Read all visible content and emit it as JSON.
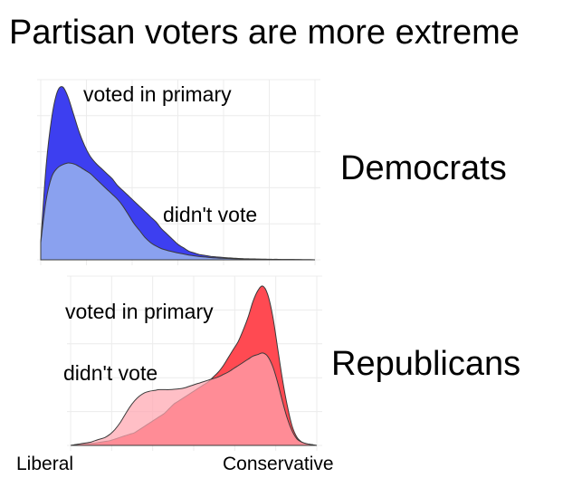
{
  "title": "Partisan voters are more extreme",
  "axis": {
    "left_label": "Liberal",
    "right_label": "Conservative"
  },
  "colors": {
    "dem_voted": "#3d3ff0",
    "dem_didnt": "#a8c8ee",
    "rep_voted": "#ff4a52",
    "rep_didnt": "#ffa6b0",
    "outline": "#3a3a3a",
    "grid": "#ececec"
  },
  "chart_data": [
    {
      "type": "area",
      "panel_label": "Democrats",
      "xlim": [
        0,
        1
      ],
      "grid": true,
      "series": [
        {
          "name": "voted in primary",
          "x": [
            0.0,
            0.02,
            0.04,
            0.06,
            0.08,
            0.1,
            0.12,
            0.14,
            0.16,
            0.18,
            0.2,
            0.22,
            0.24,
            0.26,
            0.28,
            0.3,
            0.32,
            0.34,
            0.36,
            0.38,
            0.4,
            0.42,
            0.44,
            0.46,
            0.48,
            0.5,
            0.52,
            0.54,
            0.56,
            0.58,
            0.6,
            0.62,
            0.64,
            0.66,
            0.68,
            0.7,
            0.72,
            0.74,
            0.76,
            0.78,
            0.8,
            0.82,
            0.84,
            0.86,
            0.88,
            0.9,
            0.92,
            0.94,
            0.96,
            0.98,
            1.0
          ],
          "y": [
            0.1,
            0.55,
            0.82,
            0.97,
            1.0,
            0.94,
            0.84,
            0.74,
            0.66,
            0.6,
            0.56,
            0.53,
            0.5,
            0.47,
            0.43,
            0.4,
            0.37,
            0.34,
            0.31,
            0.28,
            0.25,
            0.22,
            0.18,
            0.15,
            0.12,
            0.09,
            0.07,
            0.05,
            0.04,
            0.03,
            0.025,
            0.02,
            0.017,
            0.014,
            0.012,
            0.01,
            0.008,
            0.007,
            0.006,
            0.005,
            0.004,
            0.004,
            0.003,
            0.003,
            0.002,
            0.002,
            0.002,
            0.001,
            0.001,
            0.001,
            0.0
          ]
        },
        {
          "name": "didn't vote",
          "x": [
            0.0,
            0.02,
            0.04,
            0.06,
            0.08,
            0.1,
            0.12,
            0.14,
            0.16,
            0.18,
            0.2,
            0.22,
            0.24,
            0.26,
            0.28,
            0.3,
            0.32,
            0.34,
            0.36,
            0.38,
            0.4,
            0.42,
            0.44,
            0.46,
            0.48,
            0.5,
            0.52,
            0.54,
            0.56,
            0.58,
            0.6,
            0.62,
            0.64,
            0.66,
            0.68,
            0.7,
            0.72,
            0.74,
            0.76,
            0.78,
            0.8,
            0.82,
            0.84,
            0.86,
            0.88,
            0.9,
            0.92,
            0.94,
            0.96,
            0.98,
            1.0
          ],
          "y": [
            0.1,
            0.35,
            0.48,
            0.53,
            0.55,
            0.56,
            0.555,
            0.54,
            0.52,
            0.5,
            0.47,
            0.44,
            0.41,
            0.38,
            0.35,
            0.31,
            0.26,
            0.21,
            0.17,
            0.13,
            0.1,
            0.08,
            0.065,
            0.055,
            0.047,
            0.04,
            0.034,
            0.028,
            0.023,
            0.019,
            0.016,
            0.013,
            0.011,
            0.009,
            0.008,
            0.007,
            0.006,
            0.005,
            0.004,
            0.003,
            0.003,
            0.002,
            0.002,
            0.002,
            0.001,
            0.001,
            0.001,
            0.001,
            0.0,
            0.0,
            0.0
          ]
        }
      ]
    },
    {
      "type": "area",
      "panel_label": "Republicans",
      "xlim": [
        0,
        1
      ],
      "grid": true,
      "series": [
        {
          "name": "voted in primary",
          "x": [
            0.0,
            0.02,
            0.04,
            0.06,
            0.08,
            0.1,
            0.12,
            0.14,
            0.16,
            0.18,
            0.2,
            0.22,
            0.24,
            0.26,
            0.28,
            0.3,
            0.32,
            0.34,
            0.36,
            0.38,
            0.4,
            0.42,
            0.44,
            0.46,
            0.48,
            0.5,
            0.52,
            0.54,
            0.56,
            0.58,
            0.6,
            0.62,
            0.64,
            0.66,
            0.68,
            0.7,
            0.72,
            0.74,
            0.76,
            0.78,
            0.8,
            0.82,
            0.84,
            0.86,
            0.88,
            0.9,
            0.92,
            0.94,
            0.96,
            0.98,
            1.0
          ],
          "y": [
            0.0,
            0.005,
            0.008,
            0.01,
            0.012,
            0.015,
            0.02,
            0.025,
            0.03,
            0.04,
            0.05,
            0.06,
            0.07,
            0.08,
            0.1,
            0.12,
            0.14,
            0.16,
            0.18,
            0.2,
            0.23,
            0.26,
            0.28,
            0.3,
            0.32,
            0.34,
            0.36,
            0.38,
            0.4,
            0.43,
            0.46,
            0.5,
            0.55,
            0.6,
            0.65,
            0.72,
            0.8,
            0.9,
            0.97,
            1.0,
            0.95,
            0.82,
            0.62,
            0.42,
            0.25,
            0.12,
            0.05,
            0.02,
            0.01,
            0.005,
            0.0
          ]
        },
        {
          "name": "didn't vote",
          "x": [
            0.0,
            0.02,
            0.04,
            0.06,
            0.08,
            0.1,
            0.12,
            0.14,
            0.16,
            0.18,
            0.2,
            0.22,
            0.24,
            0.26,
            0.28,
            0.3,
            0.32,
            0.34,
            0.36,
            0.38,
            0.4,
            0.42,
            0.44,
            0.46,
            0.48,
            0.5,
            0.52,
            0.54,
            0.56,
            0.58,
            0.6,
            0.62,
            0.64,
            0.66,
            0.68,
            0.7,
            0.72,
            0.74,
            0.76,
            0.78,
            0.8,
            0.82,
            0.84,
            0.86,
            0.88,
            0.9,
            0.92,
            0.94,
            0.96,
            0.98,
            1.0
          ],
          "y": [
            0.0,
            0.005,
            0.01,
            0.015,
            0.02,
            0.03,
            0.04,
            0.05,
            0.07,
            0.1,
            0.14,
            0.19,
            0.24,
            0.28,
            0.31,
            0.33,
            0.34,
            0.345,
            0.35,
            0.35,
            0.35,
            0.352,
            0.355,
            0.36,
            0.37,
            0.38,
            0.39,
            0.4,
            0.41,
            0.42,
            0.43,
            0.445,
            0.46,
            0.48,
            0.5,
            0.52,
            0.54,
            0.56,
            0.57,
            0.58,
            0.56,
            0.5,
            0.4,
            0.28,
            0.17,
            0.09,
            0.04,
            0.02,
            0.01,
            0.005,
            0.0
          ]
        }
      ]
    }
  ]
}
